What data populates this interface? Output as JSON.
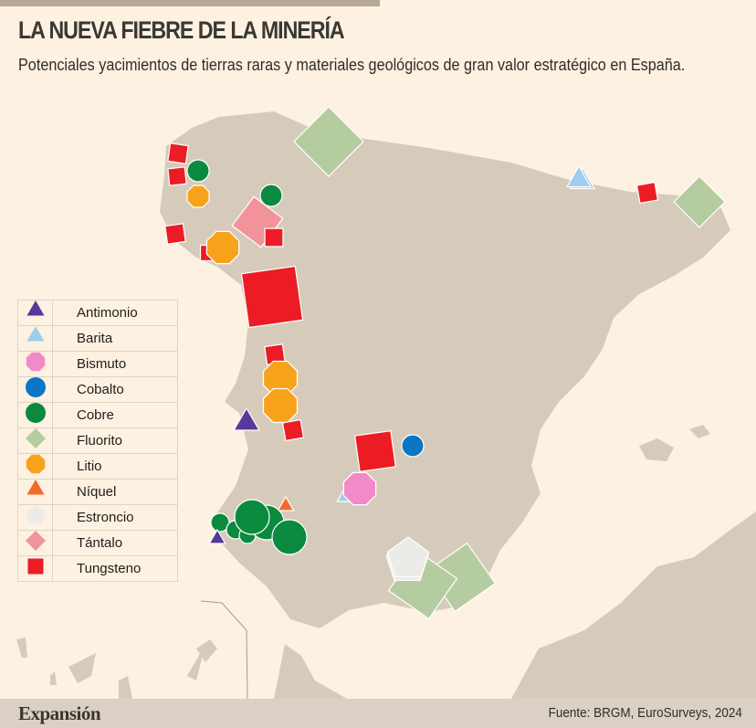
{
  "header": {
    "title": "LA NUEVA FIEBRE DE LA MINERÍA",
    "subtitle": "Potenciales yacimientos de tierras raras y materiales geológicos de gran valor estratégico en España."
  },
  "legend": [
    {
      "label": "Antimonio",
      "shape": "triangle",
      "color": "#56399a"
    },
    {
      "label": "Barita",
      "shape": "triangle",
      "color": "#9fcdec"
    },
    {
      "label": "Bismuto",
      "shape": "octagon",
      "color": "#f28ac9"
    },
    {
      "label": "Cobalto",
      "shape": "circle",
      "color": "#0a76c4"
    },
    {
      "label": "Cobre",
      "shape": "circle",
      "color": "#0a8a3f"
    },
    {
      "label": "Fluorito",
      "shape": "diamond",
      "color": "#b5cca0"
    },
    {
      "label": "Litio",
      "shape": "octagon",
      "color": "#f7a21b"
    },
    {
      "label": "Níquel",
      "shape": "triangle",
      "color": "#f26b2b"
    },
    {
      "label": "Estroncio",
      "shape": "pentagon",
      "color": "#ecebe7"
    },
    {
      "label": "Tántalo",
      "shape": "diamond",
      "color": "#f2939a"
    },
    {
      "label": "Tungsteno",
      "shape": "square",
      "color": "#ec1c24"
    }
  ],
  "colors": {
    "background": "#fdf1e2",
    "land": "#d6cbbb",
    "footer": "#dbd0c5"
  },
  "footer": {
    "brand": "Expansión",
    "source": "Fuente: BRGM, EuroSurveys, 2024"
  }
}
